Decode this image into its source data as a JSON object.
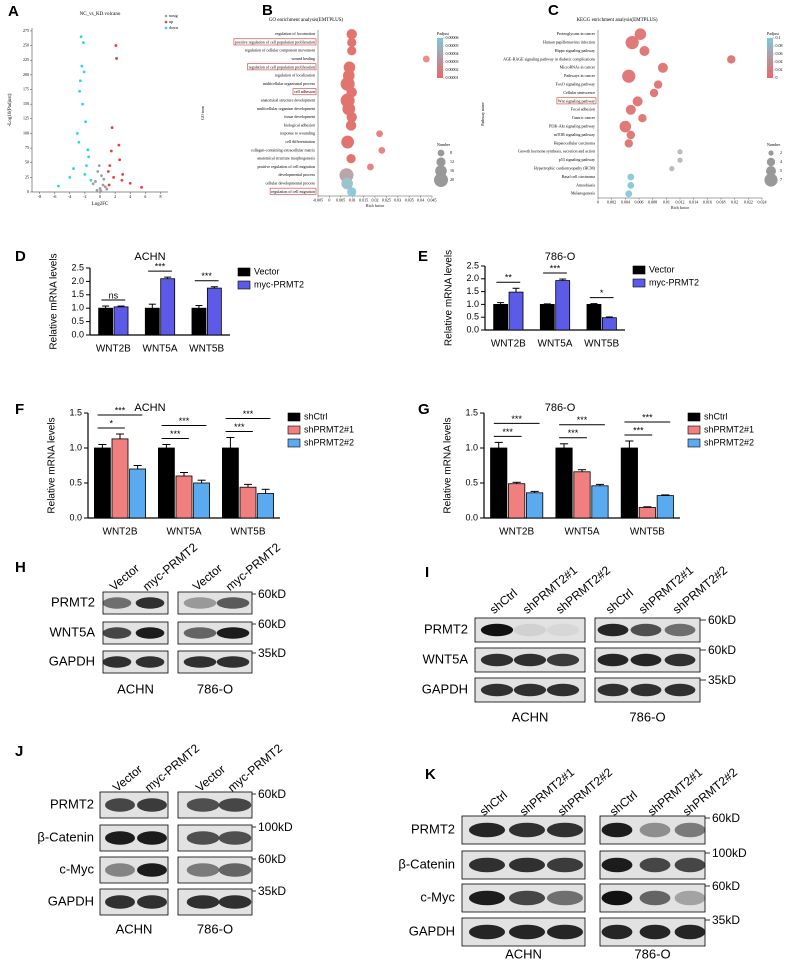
{
  "chart_data": [
    {
      "type": "scatter",
      "panel_label": "A",
      "title": "NC_vs_KD.volcano",
      "x_label": "Log2FC",
      "y_label": "-Log10(Padjust)",
      "xlim": [
        -9,
        9
      ],
      "xticks": [
        -8,
        -6,
        -4,
        -2,
        0,
        2,
        4,
        6,
        8
      ],
      "ylim": [
        0,
        280
      ],
      "yticks": [
        0,
        25,
        50,
        75,
        100,
        125,
        150,
        175,
        200,
        225,
        250,
        275
      ],
      "legend": "top-right",
      "series": [
        {
          "name": "nosig",
          "color": "#9e9e9e",
          "x": [
            -0.6,
            -0.3,
            0,
            0.2,
            0.4,
            0.7,
            -0.9,
            0.9,
            -0.1,
            0.5,
            -0.4,
            0.1
          ],
          "values": [
            18,
            35,
            6,
            28,
            12,
            9,
            14,
            5,
            45,
            22,
            3,
            2
          ]
        },
        {
          "name": "up",
          "color": "#e8413c",
          "x": [
            2.1,
            2.2,
            1.6,
            2.5,
            1.3,
            3.0,
            1.8,
            4.0,
            2.6,
            1.2,
            5.5,
            1.5,
            2.9,
            1.1
          ],
          "values": [
            250,
            228,
            110,
            80,
            45,
            30,
            25,
            15,
            55,
            12,
            8,
            70,
            20,
            35
          ]
        },
        {
          "name": "down",
          "color": "#27d8e8",
          "x": [
            -2.5,
            -2.2,
            -2.4,
            -2.6,
            -2.3,
            -1.9,
            -3.0,
            -2.8,
            -1.5,
            -3.5,
            -4.0,
            -2.0,
            -1.2,
            -5.5,
            -1.8,
            -2.1,
            -2.7,
            -1.6
          ],
          "values": [
            265,
            255,
            215,
            190,
            150,
            120,
            100,
            85,
            60,
            40,
            25,
            30,
            20,
            10,
            45,
            205,
            172,
            72
          ]
        }
      ]
    },
    {
      "type": "dot",
      "panel_label": "B",
      "title": "GO enrichment analysis(EMTPLUS)",
      "x_label": "Rich factor",
      "y_label": "GO term",
      "categories": [
        "regulation of locomotion",
        "positive regulation of cell population proliferation",
        "regulation of cellular component movement",
        "wound healing",
        "regulation of cell population proliferation",
        "regulation of localization",
        "multicellular organismal process",
        "cell adhesion",
        "anatomical structure development",
        "multicellular organism development",
        "tissue development",
        "biological adhesion",
        "response to wounding",
        "cell differentiation",
        "collagen-containing extracellular matrix",
        "anatomical structure morphogenesis",
        "positive regulation of cell migration",
        "developmental process",
        "cellular developmental process",
        "regulation of cell migration"
      ],
      "values": [
        0.0098,
        0.0098,
        0.0098,
        0.0425,
        0.0088,
        0.0085,
        0.008,
        0.0098,
        0.008,
        0.0085,
        0.0098,
        0.0095,
        0.022,
        0.008,
        0.023,
        0.0095,
        0.018,
        0.0075,
        0.0078,
        0.0098
      ],
      "sizes": [
        14,
        12,
        12,
        8,
        16,
        16,
        20,
        14,
        20,
        18,
        14,
        14,
        8,
        18,
        8,
        12,
        8,
        20,
        16,
        12
      ],
      "colors": [
        "#e2746f",
        "#e2746f",
        "#e2746f",
        "#ef8a85",
        "#e2746f",
        "#e2746f",
        "#e2746f",
        "#e2746f",
        "#e2746f",
        "#e2746f",
        "#e2746f",
        "#e2746f",
        "#e58480",
        "#e2746f",
        "#e58480",
        "#e2746f",
        "#e58480",
        "#b9a5aa",
        "#9cc4cc",
        "#8ccbd8"
      ],
      "highlighted": [
        false,
        true,
        false,
        false,
        true,
        false,
        false,
        true,
        false,
        false,
        false,
        false,
        false,
        false,
        false,
        false,
        false,
        false,
        false,
        true
      ],
      "xlim": [
        -0.005,
        0.045
      ],
      "xticks": [
        -0.005,
        0,
        0.005,
        0.01,
        0.015,
        0.02,
        0.025,
        0.03,
        0.035,
        0.04,
        0.045
      ],
      "color_legend": {
        "title": "Padjust",
        "ticks": [
          6e-05,
          5e-05,
          4e-05,
          3e-05,
          2e-05,
          1e-05
        ],
        "colors": [
          "#7ec8d8",
          "#e8666a"
        ]
      },
      "size_legend": {
        "title": "Number",
        "values": [
          8,
          12,
          16,
          20
        ]
      }
    },
    {
      "type": "dot",
      "panel_label": "C",
      "title": "KEGG enrichment analysis(EMTPLUS)",
      "x_label": "Rich factor",
      "y_label": "Pathway name",
      "categories": [
        "Proteoglycans in cancer",
        "Human papillomavirus infection",
        "Hippo signaling pathway",
        "AGE-RAGE signaling pathway in diabetic complications",
        "MicroRNAs in cancer",
        "Pathways in cancer",
        "FoxO signaling pathway",
        "Cellular senescence",
        "Wnt signaling pathway",
        "Focal adhesion",
        "Gastric cancer",
        "PI3K-Akt signaling pathway",
        "mTOR signaling pathway",
        "Hepatocellular carcinoma",
        "Growth hormone synthesis, secretion and action",
        "p53 signaling pathway",
        "Hypertrophic cardiomyopathy (HCM)",
        "Basal cell carcinoma",
        "Amoebiasis",
        "Melanogenesis"
      ],
      "values": [
        0.0062,
        0.005,
        0.0068,
        0.0195,
        0.0095,
        0.0045,
        0.0088,
        0.0082,
        0.0058,
        0.0048,
        0.0065,
        0.004,
        0.0048,
        0.0045,
        0.012,
        0.012,
        0.0108,
        0.0048,
        0.0048,
        0.0045
      ],
      "sizes": [
        6,
        7,
        5,
        4,
        5,
        7,
        4,
        4,
        5,
        5,
        4,
        6,
        4,
        4,
        2,
        2,
        2,
        3,
        3,
        3
      ],
      "colors": [
        "#e07a78",
        "#e07a78",
        "#e07a78",
        "#e07a78",
        "#e07a78",
        "#e07a78",
        "#e07a78",
        "#e07a78",
        "#e07a78",
        "#e07a78",
        "#e07a78",
        "#e07a78",
        "#e07a78",
        "#e07a78",
        "#bbbbbb",
        "#bbbbbb",
        "#bbbbbb",
        "#8ccbd8",
        "#8ccbd8",
        "#8ccbd8"
      ],
      "highlighted": [
        false,
        false,
        false,
        false,
        false,
        false,
        false,
        false,
        true,
        false,
        false,
        false,
        false,
        false,
        false,
        false,
        false,
        false,
        false,
        false
      ],
      "xlim": [
        0,
        0.024
      ],
      "xticks": [
        0,
        0.002,
        0.004,
        0.006,
        0.008,
        0.01,
        0.012,
        0.014,
        0.016,
        0.018,
        0.02,
        0.022,
        0.024
      ],
      "color_legend": {
        "title": "Padjust",
        "ticks": [
          0.1,
          0.08,
          0.06,
          0.04,
          0.02,
          0
        ],
        "colors": [
          "#7ec8d8",
          "#e8666a"
        ]
      },
      "size_legend": {
        "title": "Number",
        "values": [
          2,
          4,
          5,
          7
        ]
      }
    },
    {
      "type": "bar",
      "panel_label": "D",
      "title": "ACHN",
      "y_label": "Relative mRNA levels",
      "categories": [
        "WNT2B",
        "WNT5A",
        "WNT5B"
      ],
      "series": [
        {
          "name": "Vector",
          "color": "#000000",
          "values": [
            1.0,
            1.0,
            1.0
          ],
          "errors": [
            0.08,
            0.15,
            0.1
          ]
        },
        {
          "name": "myc-PRMT2",
          "color": "#5b5be8",
          "values": [
            1.05,
            2.1,
            1.75
          ],
          "errors": [
            0.03,
            0.06,
            0.05
          ],
          "significance": [
            "ns",
            "***",
            "***"
          ]
        }
      ],
      "ylim": [
        0,
        2.5
      ],
      "yticks": [
        {
          "value": 0,
          "label": "0.0"
        },
        {
          "value": 0.5,
          "label": "0.5"
        },
        {
          "value": 1,
          "label": "1.0"
        },
        {
          "value": 1.5,
          "label": "1.5"
        },
        {
          "value": 2,
          "label": "2.0"
        },
        {
          "value": 2.5,
          "label": "2.5"
        }
      ],
      "legend": "top-right"
    },
    {
      "type": "bar",
      "panel_label": "E",
      "title": "786-O",
      "y_label": "Relative mRNA levels",
      "categories": [
        "WNT2B",
        "WNT5A",
        "WNT5B"
      ],
      "series": [
        {
          "name": "Vector",
          "color": "#000000",
          "values": [
            1.0,
            1.0,
            1.0
          ],
          "errors": [
            0.07,
            0.02,
            0.03
          ]
        },
        {
          "name": "myc-PRMT2",
          "color": "#5b5be8",
          "values": [
            1.48,
            1.93,
            0.48
          ],
          "errors": [
            0.15,
            0.06,
            0.03
          ],
          "significance": [
            "**",
            "***",
            "*"
          ]
        }
      ],
      "ylim": [
        0,
        2.5
      ],
      "yticks": [
        {
          "value": 0,
          "label": "0.0"
        },
        {
          "value": 0.5,
          "label": "0.5"
        },
        {
          "value": 1,
          "label": "1.0"
        },
        {
          "value": 1.5,
          "label": "1.5"
        },
        {
          "value": 2,
          "label": "2.0"
        },
        {
          "value": 2.5,
          "label": "2.5"
        }
      ],
      "legend": "top-right"
    },
    {
      "type": "bar",
      "panel_label": "F",
      "title": "ACHN",
      "y_label": "Relative mRNA levels",
      "categories": [
        "WNT2B",
        "WNT5A",
        "WNT5B"
      ],
      "series": [
        {
          "name": "shCtrl",
          "color": "#000000",
          "values": [
            1.0,
            1.0,
            1.0
          ],
          "errors": [
            0.05,
            0.05,
            0.15
          ]
        },
        {
          "name": "shPRMT2#1",
          "color": "#f08080",
          "values": [
            1.13,
            0.6,
            0.44
          ],
          "errors": [
            0.07,
            0.05,
            0.04
          ],
          "significance": [
            "*",
            "***",
            "***"
          ]
        },
        {
          "name": "shPRMT2#2",
          "color": "#5aaaf0",
          "values": [
            0.7,
            0.5,
            0.35
          ],
          "errors": [
            0.05,
            0.04,
            0.06
          ],
          "significance": [
            "***",
            "***",
            "***"
          ]
        }
      ],
      "ylim": [
        0,
        1.5
      ],
      "yticks": [
        {
          "value": 0,
          "label": "0.0"
        },
        {
          "value": 0.5,
          "label": "0.5"
        },
        {
          "value": 1,
          "label": "1.0"
        },
        {
          "value": 1.5,
          "label": "1.5"
        }
      ],
      "legend": "top-right"
    },
    {
      "type": "bar",
      "panel_label": "G",
      "title": "786-O",
      "y_label": "Relative mRNA levels",
      "categories": [
        "WNT2B",
        "WNT5A",
        "WNT5B"
      ],
      "series": [
        {
          "name": "shCtrl",
          "color": "#000000",
          "values": [
            1.0,
            1.0,
            1.0
          ],
          "errors": [
            0.08,
            0.06,
            0.1
          ]
        },
        {
          "name": "shPRMT2#1",
          "color": "#f08080",
          "values": [
            0.49,
            0.66,
            0.15
          ],
          "errors": [
            0.02,
            0.03,
            0.01
          ],
          "significance": [
            "***",
            "***",
            "***"
          ]
        },
        {
          "name": "shPRMT2#2",
          "color": "#5aaaf0",
          "values": [
            0.36,
            0.46,
            0.32
          ],
          "errors": [
            0.02,
            0.02,
            0.01
          ],
          "significance": [
            "***",
            "***",
            "***"
          ]
        }
      ],
      "ylim": [
        0,
        1.5
      ],
      "yticks": [
        {
          "value": 0,
          "label": "0.0"
        },
        {
          "value": 0.5,
          "label": "0.5"
        },
        {
          "value": 1,
          "label": "1.0"
        },
        {
          "value": 1.5,
          "label": "1.5"
        }
      ],
      "legend": "top-right"
    }
  ],
  "blots": [
    {
      "panel_label": "H",
      "lanes": [
        "Vector",
        "myc-PRMT2",
        "Vector",
        "myc-PRMT2"
      ],
      "rows": [
        "PRMT2",
        "WNT5A",
        "GAPDH"
      ],
      "markers": [
        "60kD",
        "60kD",
        "35kD"
      ],
      "cell_lines": [
        "ACHN",
        "786-O"
      ]
    },
    {
      "panel_label": "I",
      "lanes": [
        "shCtrl",
        "shPRMT2#1",
        "shPRMT2#2",
        "shCtrl",
        "shPRMT2#1",
        "shPRMT2#2"
      ],
      "rows": [
        "PRMT2",
        "WNT5A",
        "GAPDH"
      ],
      "markers": [
        "60kD",
        "60kD",
        "35kD"
      ],
      "cell_lines": [
        "ACHN",
        "786-O"
      ]
    },
    {
      "panel_label": "J",
      "lanes": [
        "Vector",
        "myc-PRMT2",
        "Vector",
        "myc-PRMT2"
      ],
      "rows": [
        "PRMT2",
        "β-Catenin",
        "c-Myc",
        "GAPDH"
      ],
      "markers": [
        "60kD",
        "100kD",
        "60kD",
        "35kD"
      ],
      "cell_lines": [
        "ACHN",
        "786-O"
      ]
    },
    {
      "panel_label": "K",
      "lanes": [
        "shCtrl",
        "shPRMT2#1",
        "shPRMT2#2",
        "shCtrl",
        "shPRMT2#1",
        "shPRMT2#2"
      ],
      "rows": [
        "PRMT2",
        "β-Catenin",
        "c-Myc",
        "GAPDH"
      ],
      "markers": [
        "60kD",
        "100kD",
        "60kD",
        "35kD"
      ],
      "cell_lines": [
        "ACHN",
        "786-O"
      ]
    }
  ]
}
